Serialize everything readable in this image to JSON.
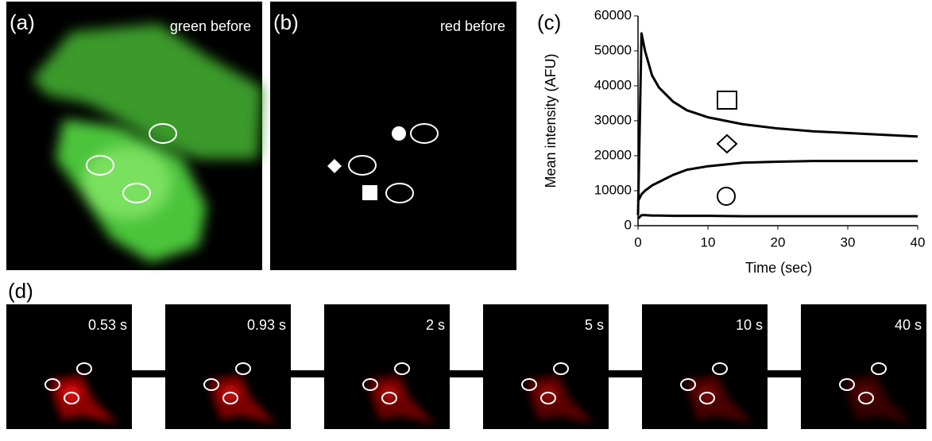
{
  "panels": {
    "a": {
      "label": "(a)",
      "caption": "green before"
    },
    "b": {
      "label": "(b)",
      "caption": "red before"
    },
    "c": {
      "label": "(c)"
    },
    "d": {
      "label": "(d)",
      "frames": [
        "0.53 s",
        "0.93 s",
        "2 s",
        "5 s",
        "10 s",
        "40 s"
      ]
    }
  },
  "chart_data": {
    "type": "line",
    "xlabel": "Time (sec)",
    "ylabel": "Mean intensity (AFU)",
    "x": [
      0,
      0.5,
      1,
      2,
      3,
      5,
      7,
      10,
      15,
      20,
      25,
      30,
      35,
      40
    ],
    "series": [
      {
        "color": "#000000",
        "values": [
          3000,
          55000,
          50000,
          43000,
          39500,
          35500,
          33000,
          31000,
          29000,
          27800,
          27000,
          26500,
          26000,
          25500
        ]
      },
      {
        "color": "#000000",
        "values": [
          7000,
          9000,
          10000,
          11500,
          12500,
          14500,
          16000,
          17000,
          18000,
          18300,
          18500,
          18500,
          18500,
          18500
        ]
      },
      {
        "color": "#000000",
        "values": [
          2000,
          3000,
          3000,
          2900,
          2900,
          2800,
          2800,
          2800,
          2700,
          2700,
          2700,
          2700,
          2700,
          2700
        ]
      }
    ],
    "xlim": [
      0,
      40
    ],
    "ylim": [
      0,
      60000
    ],
    "xticks": [
      0,
      10,
      20,
      30,
      40
    ],
    "yticks": [
      0,
      10000,
      20000,
      30000,
      40000,
      50000,
      60000
    ]
  }
}
